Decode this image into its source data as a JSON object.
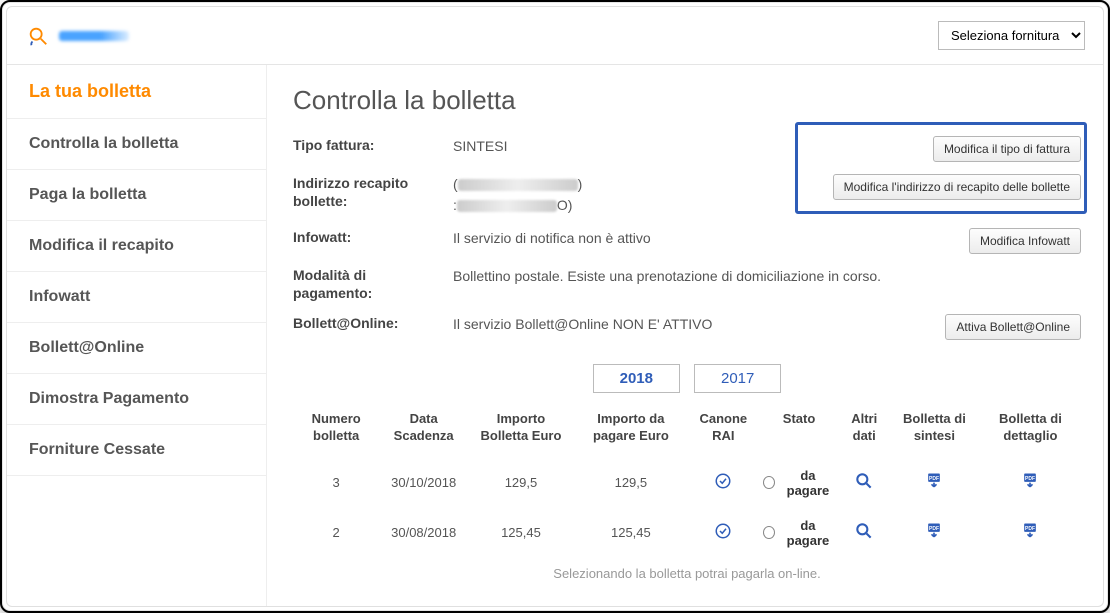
{
  "topbar": {
    "supply_select_label": "Seleziona fornitura"
  },
  "sidebar": {
    "items": [
      {
        "label": "La tua bolletta",
        "active": true
      },
      {
        "label": "Controlla la bolletta",
        "active": false
      },
      {
        "label": "Paga la bolletta",
        "active": false
      },
      {
        "label": "Modifica il recapito",
        "active": false
      },
      {
        "label": "Infowatt",
        "active": false
      },
      {
        "label": "Bollett@Online",
        "active": false
      },
      {
        "label": "Dimostra Pagamento",
        "active": false
      },
      {
        "label": "Forniture Cessate",
        "active": false
      }
    ]
  },
  "main": {
    "title": "Controlla la bolletta",
    "rows": {
      "tipo_fattura": {
        "label": "Tipo fattura:",
        "value": "SINTESI",
        "button": "Modifica il tipo di fattura"
      },
      "indirizzo": {
        "label": "Indirizzo recapito bollette:",
        "button": "Modifica l'indirizzo di recapito delle bollette"
      },
      "infowatt": {
        "label": "Infowatt:",
        "value": "Il servizio di notifica non è attivo",
        "button": "Modifica Infowatt"
      },
      "modalita": {
        "label": "Modalità di pagamento:",
        "value": "Bollettino postale. Esiste una prenotazione di domiciliazione in corso."
      },
      "bollettonline": {
        "label": "Bollett@Online:",
        "value": "Il servizio Bollett@Online NON E' ATTIVO",
        "button": "Attiva Bollett@Online"
      }
    },
    "year_tabs": [
      {
        "label": "2018",
        "active": true
      },
      {
        "label": "2017",
        "active": false
      }
    ],
    "table": {
      "headers": {
        "numero": "Numero bolletta",
        "scadenza": "Data Scadenza",
        "importo": "Importo Bolletta Euro",
        "da_pagare": "Importo da pagare Euro",
        "canone": "Canone RAI",
        "stato": "Stato",
        "altri": "Altri dati",
        "sintesi": "Bolletta di sintesi",
        "dettaglio": "Bolletta di dettaglio"
      },
      "rows": [
        {
          "numero": "3",
          "scadenza": "30/10/2018",
          "importo": "129,5",
          "da_pagare": "129,5",
          "stato": "da pagare"
        },
        {
          "numero": "2",
          "scadenza": "30/08/2018",
          "importo": "125,45",
          "da_pagare": "125,45",
          "stato": "da pagare"
        }
      ]
    },
    "footer_note": "Selezionando la bolletta potrai pagarla on-line."
  },
  "colors": {
    "accent_orange": "#ff8a00",
    "accent_blue": "#2f5db8",
    "text_muted": "#555555"
  }
}
